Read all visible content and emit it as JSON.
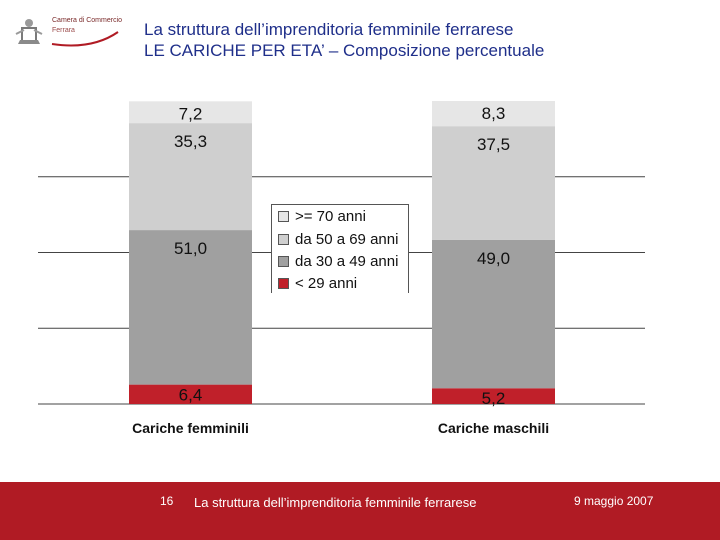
{
  "header": {
    "logo_line1": "Camera di Commercio",
    "logo_line2": "Ferrara",
    "title": "La struttura dell’imprenditoria femminile ferrarese",
    "subtitle": "LE CARICHE PER ETA’ – Composizione percentuale"
  },
  "chart_data": {
    "type": "bar",
    "stacked": true,
    "categories": [
      "Cariche femminili",
      "Cariche maschili"
    ],
    "series": [
      {
        "name": "< 29 anni",
        "values": [
          6.4,
          5.2
        ],
        "labels": [
          "6,4",
          "5,2"
        ],
        "color": "#c0202a"
      },
      {
        "name": "da 30 a 49 anni",
        "values": [
          51.0,
          49.0
        ],
        "labels": [
          "51,0",
          "49,0"
        ],
        "color": "#a0a0a0"
      },
      {
        "name": "da 50 a 69 anni",
        "values": [
          35.3,
          37.5
        ],
        "labels": [
          "35,3",
          "37,5"
        ],
        "color": "#cfcfcf"
      },
      {
        "name": ">= 70 anni",
        "values": [
          7.2,
          8.3
        ],
        "labels": [
          "7,2",
          "8,3"
        ],
        "color": "#e6e6e6"
      }
    ],
    "ylim": [
      0,
      100
    ],
    "grid": true,
    "legend_position": "center"
  },
  "legend": {
    "items": [
      {
        "label": ">= 70 anni",
        "color": "#e6e6e6"
      },
      {
        "label": "da 50 a 69 anni",
        "color": "#cfcfcf"
      },
      {
        "label": "da 30 a 49 anni",
        "color": "#a0a0a0"
      },
      {
        "label": "< 29 anni",
        "color": "#c0202a"
      }
    ]
  },
  "footer": {
    "page_number": "16",
    "text": "La struttura dell’imprenditoria femminile ferrarese",
    "date": "9 maggio 2007"
  }
}
